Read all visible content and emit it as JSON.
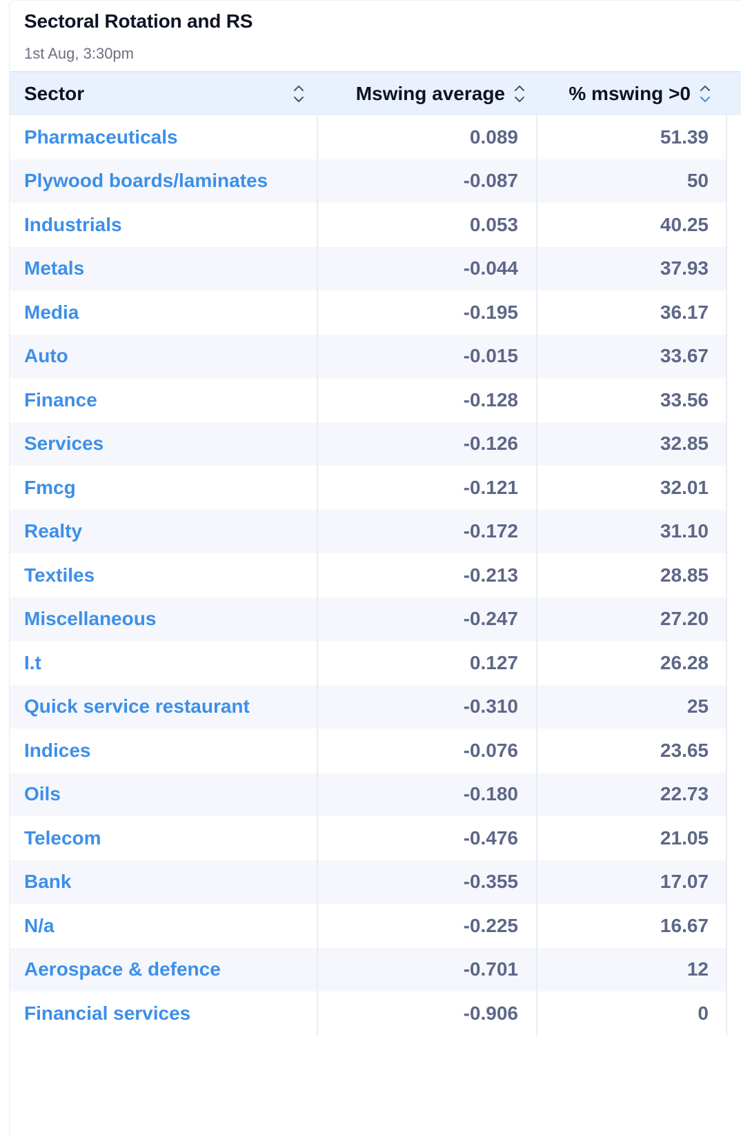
{
  "card": {
    "title": "Sectoral Rotation and RS",
    "subtitle": "1st Aug, 3:30pm"
  },
  "table": {
    "columns": [
      {
        "label": "Sector",
        "sort_icon": "sort-updown-icon"
      },
      {
        "label": "Mswing average",
        "sort_icon": "sort-updown-icon"
      },
      {
        "label": "% mswing >0",
        "sort_icon": "sort-updown-active-icon"
      }
    ],
    "rows": [
      {
        "sector": "Pharmaceuticals",
        "mswing_average": "0.089",
        "pct_mswing": "51.39"
      },
      {
        "sector": "Plywood boards/laminates",
        "mswing_average": "-0.087",
        "pct_mswing": "50"
      },
      {
        "sector": "Industrials",
        "mswing_average": "0.053",
        "pct_mswing": "40.25"
      },
      {
        "sector": "Metals",
        "mswing_average": "-0.044",
        "pct_mswing": "37.93"
      },
      {
        "sector": "Media",
        "mswing_average": "-0.195",
        "pct_mswing": "36.17"
      },
      {
        "sector": "Auto",
        "mswing_average": "-0.015",
        "pct_mswing": "33.67"
      },
      {
        "sector": "Finance",
        "mswing_average": "-0.128",
        "pct_mswing": "33.56"
      },
      {
        "sector": "Services",
        "mswing_average": "-0.126",
        "pct_mswing": "32.85"
      },
      {
        "sector": "Fmcg",
        "mswing_average": "-0.121",
        "pct_mswing": "32.01"
      },
      {
        "sector": "Realty",
        "mswing_average": "-0.172",
        "pct_mswing": "31.10"
      },
      {
        "sector": "Textiles",
        "mswing_average": "-0.213",
        "pct_mswing": "28.85"
      },
      {
        "sector": "Miscellaneous",
        "mswing_average": "-0.247",
        "pct_mswing": "27.20"
      },
      {
        "sector": "I.t",
        "mswing_average": "0.127",
        "pct_mswing": "26.28"
      },
      {
        "sector": "Quick service restaurant",
        "mswing_average": "-0.310",
        "pct_mswing": "25"
      },
      {
        "sector": "Indices",
        "mswing_average": "-0.076",
        "pct_mswing": "23.65"
      },
      {
        "sector": "Oils",
        "mswing_average": "-0.180",
        "pct_mswing": "22.73"
      },
      {
        "sector": "Telecom",
        "mswing_average": "-0.476",
        "pct_mswing": "21.05"
      },
      {
        "sector": "Bank",
        "mswing_average": "-0.355",
        "pct_mswing": "17.07"
      },
      {
        "sector": "N/a",
        "mswing_average": "-0.225",
        "pct_mswing": "16.67"
      },
      {
        "sector": "Aerospace & defence",
        "mswing_average": "-0.701",
        "pct_mswing": "12"
      },
      {
        "sector": "Financial services",
        "mswing_average": "-0.906",
        "pct_mswing": "0"
      }
    ]
  },
  "colors": {
    "sector_link": "#3d8fe8",
    "numeric_text": "#5e6787",
    "header_bg": "#e9f1fd",
    "row_alt_bg": "#f5f7fc",
    "active_sort": "#3d8fe8",
    "inactive_sort": "#4b5163"
  }
}
